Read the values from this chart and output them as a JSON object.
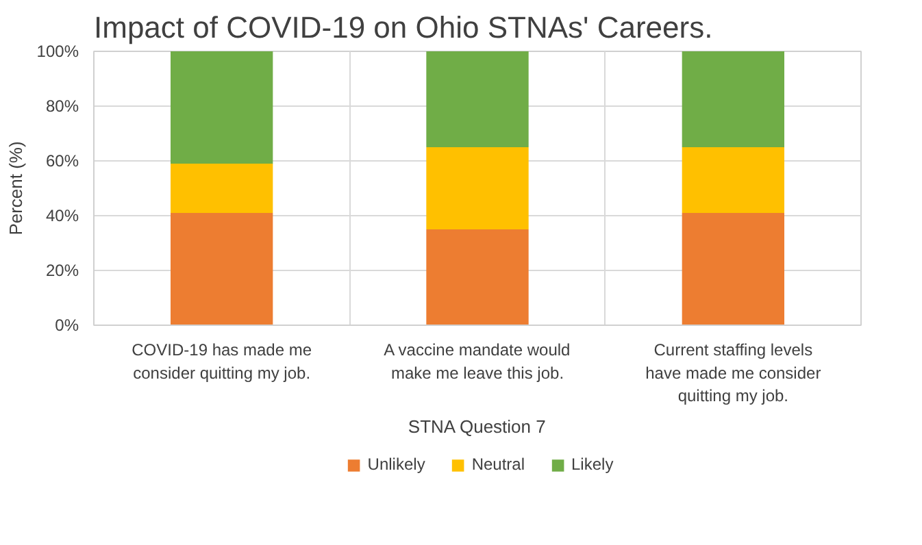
{
  "chart_data": {
    "type": "bar",
    "title": "Impact of COVID-19 on Ohio STNAs' Careers.",
    "xlabel": "STNA Question 7",
    "ylabel": "Percent (%)",
    "categories": [
      "COVID-19 has made me\nconsider quitting my job.",
      "A vaccine mandate would\nmake me leave this job.",
      "Current staffing levels\nhave made me consider\nquitting my job."
    ],
    "stacked": true,
    "series": [
      {
        "name": "Unlikely",
        "color": "#ed7d31",
        "values": [
          41,
          35,
          41
        ]
      },
      {
        "name": "Neutral",
        "color": "#ffc000",
        "values": [
          18,
          30,
          24
        ]
      },
      {
        "name": "Likely",
        "color": "#70ad47",
        "values": [
          41,
          35,
          35
        ]
      }
    ],
    "ylim": [
      0,
      100
    ],
    "yticks": [
      {
        "value": 0,
        "label": "0%"
      },
      {
        "value": 20,
        "label": "20%"
      },
      {
        "value": 40,
        "label": "40%"
      },
      {
        "value": 60,
        "label": "60%"
      },
      {
        "value": 80,
        "label": "80%"
      },
      {
        "value": 100,
        "label": "100%"
      }
    ],
    "grid": true,
    "legend": "bottom"
  }
}
